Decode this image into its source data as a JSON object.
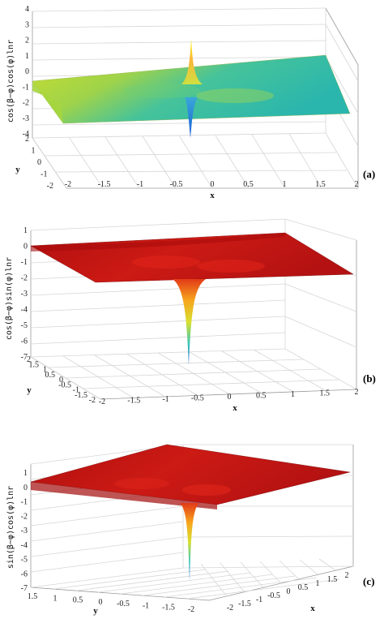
{
  "chart_data": [
    {
      "type": "surface",
      "panel_label": "(a)",
      "zlabel": "cos(β−φ)cos(φ)lnr",
      "xlabel": "x",
      "ylabel": "y",
      "x_ticks": [
        "-2",
        "-1.5",
        "-1",
        "-0.5",
        "0",
        "0.5",
        "1",
        "1.5",
        "2"
      ],
      "y_ticks": [
        "2",
        "1",
        "0",
        "-1",
        "-2"
      ],
      "z_ticks": [
        "4",
        "3",
        "2",
        "1",
        "0",
        "-1",
        "-2",
        "-3",
        "-4"
      ],
      "xlim": [
        -2,
        2
      ],
      "ylim": [
        -2,
        2
      ],
      "zlim": [
        -4,
        4
      ],
      "colormap": "parula",
      "features": {
        "singularity": [
          0,
          0
        ],
        "spike_max": 4,
        "spike_min": -4
      }
    },
    {
      "type": "surface",
      "panel_label": "(b)",
      "zlabel": "cos(β−φ)sin(φ)lnr",
      "xlabel": "x",
      "ylabel": "y",
      "x_ticks": [
        "-2",
        "-1.5",
        "-1",
        "-0.5",
        "0",
        "0.5",
        "1",
        "1.5",
        "2"
      ],
      "y_ticks": [
        "2",
        "1.5",
        "1",
        "0.5",
        "0",
        "-0.5",
        "-1",
        "-1.5",
        "-2"
      ],
      "z_ticks": [
        "1",
        "0",
        "-1",
        "-2",
        "-3",
        "-4",
        "-5",
        "-6",
        "-7"
      ],
      "xlim": [
        -2,
        2
      ],
      "ylim": [
        -2,
        2
      ],
      "zlim": [
        -7,
        1
      ],
      "colormap": "hot",
      "features": {
        "singularity": [
          0,
          0
        ],
        "spike_min": -7
      }
    },
    {
      "type": "surface",
      "panel_label": "(c)",
      "zlabel": "sin(β−φ)cos(φ)lnr",
      "xlabel": "x",
      "ylabel": "y",
      "x_ticks": [
        "2",
        "1.5",
        "1",
        "0.5",
        "0",
        "-0.5",
        "-1",
        "-1.5",
        "-2"
      ],
      "y_ticks": [
        "1.5",
        "1",
        "0.5",
        "0",
        "-0.5",
        "-1",
        "-1.5",
        "-2"
      ],
      "z_ticks": [
        "1",
        "0",
        "-1",
        "-2",
        "-3",
        "-4",
        "-5",
        "-6",
        "-7"
      ],
      "xlim": [
        -2,
        2
      ],
      "ylim": [
        -2,
        2
      ],
      "zlim": [
        -7,
        1
      ],
      "colormap": "hot",
      "features": {
        "singularity": [
          0,
          0
        ],
        "spike_min": -7
      }
    }
  ]
}
